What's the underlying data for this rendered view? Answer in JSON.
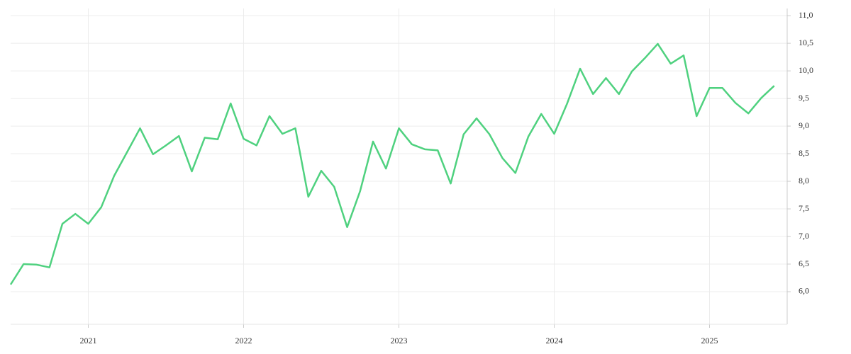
{
  "chart_data": {
    "type": "line",
    "categories": [
      null,
      null,
      null,
      null,
      null,
      null,
      "2021",
      null,
      null,
      null,
      null,
      null,
      null,
      null,
      null,
      null,
      null,
      null,
      "2022",
      null,
      null,
      null,
      null,
      null,
      null,
      null,
      null,
      null,
      null,
      null,
      "2023",
      null,
      null,
      null,
      null,
      null,
      null,
      null,
      null,
      null,
      null,
      null,
      "2024",
      null,
      null,
      null,
      null,
      null,
      null,
      null,
      null,
      null,
      null,
      null,
      "2025",
      null,
      null,
      null,
      null,
      null
    ],
    "series": [
      {
        "color": "#4fd17f",
        "values": [
          6.13,
          6.5,
          6.49,
          6.44,
          7.23,
          7.41,
          7.23,
          7.53,
          8.1,
          8.53,
          8.96,
          8.49,
          8.65,
          8.82,
          8.18,
          8.79,
          8.76,
          9.41,
          8.77,
          8.65,
          9.18,
          8.86,
          8.96,
          7.72,
          8.19,
          7.9,
          7.17,
          7.82,
          8.72,
          8.23,
          8.96,
          8.67,
          8.58,
          8.56,
          7.96,
          8.85,
          9.14,
          8.85,
          8.42,
          8.15,
          8.81,
          9.22,
          8.86,
          9.41,
          10.04,
          9.58,
          9.87,
          9.58,
          9.99,
          10.23,
          10.49,
          10.13,
          10.28,
          9.18,
          9.69,
          9.69,
          9.42,
          9.23,
          9.51,
          9.73
        ]
      }
    ],
    "ylim": [
      5.41,
      11.13
    ],
    "yticks": [
      {
        "value": 6,
        "label": "6,0"
      },
      {
        "value": 6.5,
        "label": "6,5"
      },
      {
        "value": 7,
        "label": "7,0"
      },
      {
        "value": 7.5,
        "label": "7,5"
      },
      {
        "value": 8,
        "label": "8,0"
      },
      {
        "value": 8.5,
        "label": "8,5"
      },
      {
        "value": 9,
        "label": "9,0"
      },
      {
        "value": 9.5,
        "label": "9,5"
      },
      {
        "value": 10,
        "label": "10,0"
      },
      {
        "value": 10.5,
        "label": "10,5"
      },
      {
        "value": 11,
        "label": "11,0"
      }
    ],
    "grid": true
  }
}
